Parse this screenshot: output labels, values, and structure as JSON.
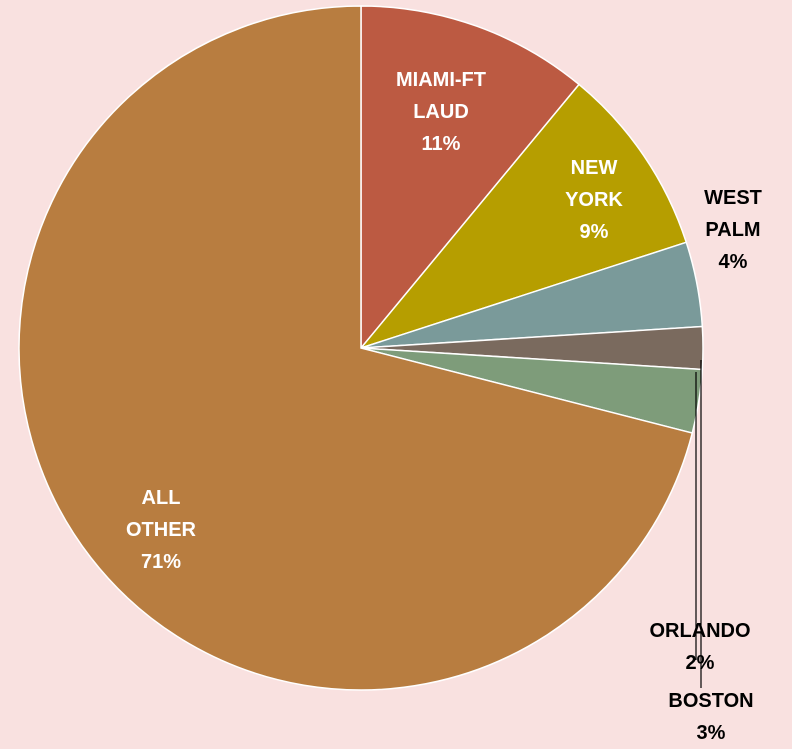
{
  "chart_data": {
    "type": "pie",
    "categories": [
      "MIAMI-FT LAUD",
      "NEW YORK",
      "WEST PALM",
      "ORLANDO",
      "BOSTON",
      "ALL OTHER"
    ],
    "values": [
      11,
      9,
      4,
      2,
      3,
      71
    ],
    "value_labels": [
      "11%",
      "9%",
      "4%",
      "2%",
      "3%",
      "71%"
    ],
    "colors": [
      "#bc5a42",
      "#b69e00",
      "#7a9a9a",
      "#7a6a5e",
      "#7e9c7a",
      "#b87d40"
    ]
  }
}
